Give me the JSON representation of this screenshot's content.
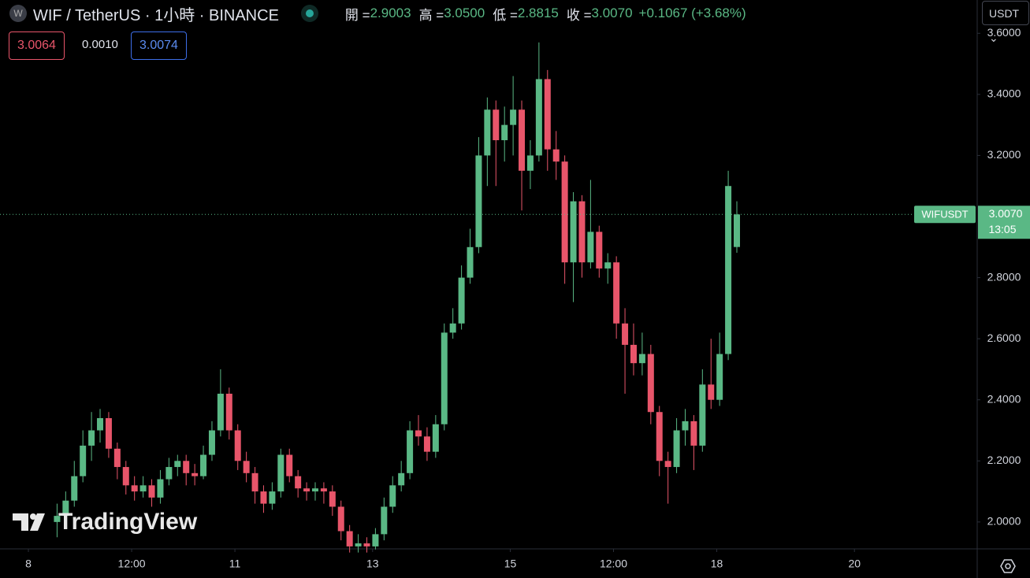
{
  "header": {
    "symbol": "WIF / TetherUS · 1小時 · BINANCE",
    "open_label": "開 =",
    "open": "2.9003",
    "high_label": "高 =",
    "high": "3.0500",
    "low_label": "低 =",
    "low": "2.8815",
    "close_label": "收 =",
    "close": "3.0070",
    "change": "+0.1067 (+3.68%)",
    "sell": "3.0064",
    "spread": "0.0010",
    "buy": "3.0074",
    "currency": "USDT"
  },
  "watermark": "TradingView",
  "chart_data": {
    "type": "candlestick",
    "up_color": "#5ab885",
    "down_color": "#e8556a",
    "grid": false,
    "x": [
      10,
      13,
      16,
      19,
      22,
      25,
      28,
      31,
      34,
      37,
      40,
      43,
      46,
      49,
      52,
      55,
      58,
      61,
      64,
      67,
      70,
      73,
      76,
      79,
      82,
      85,
      88,
      91,
      94,
      97,
      100,
      103,
      106,
      109,
      112,
      115,
      118,
      121,
      124,
      127,
      130,
      133,
      136,
      139,
      142,
      145,
      148,
      151,
      154,
      157,
      160,
      163,
      166,
      169,
      172,
      175,
      178,
      181,
      184,
      187,
      190,
      193,
      196,
      199,
      202,
      205,
      208,
      211,
      214,
      217,
      220,
      223,
      226,
      229,
      232,
      235,
      238,
      241,
      244,
      247
    ],
    "open": [
      2.0,
      2.02,
      2.07,
      2.15,
      2.25,
      2.3,
      2.34,
      2.24,
      2.18,
      2.12,
      2.1,
      2.12,
      2.08,
      2.14,
      2.18,
      2.2,
      2.16,
      2.15,
      2.22,
      2.3,
      2.42,
      2.3,
      2.2,
      2.16,
      2.1,
      2.06,
      2.1,
      2.22,
      2.15,
      2.11,
      2.1,
      2.11,
      2.1,
      2.05,
      1.97,
      1.92,
      1.93,
      1.92,
      1.96,
      2.05,
      2.12,
      2.16,
      2.3,
      2.28,
      2.23,
      2.32,
      2.62,
      2.65,
      2.8,
      2.9,
      3.2,
      3.35,
      3.25,
      3.3,
      3.35,
      3.15,
      3.2,
      3.45,
      3.22,
      3.18,
      2.85,
      3.05,
      2.85,
      2.95,
      2.83,
      2.85,
      2.65,
      2.58,
      2.52,
      2.55,
      2.36,
      2.2,
      2.18,
      2.3,
      2.33,
      2.25,
      2.45,
      2.4,
      2.55,
      2.9003
    ],
    "high": [
      2.06,
      2.1,
      2.2,
      2.3,
      2.36,
      2.37,
      2.36,
      2.26,
      2.2,
      2.15,
      2.15,
      2.14,
      2.17,
      2.21,
      2.22,
      2.22,
      2.19,
      2.25,
      2.33,
      2.5,
      2.44,
      2.32,
      2.23,
      2.18,
      2.12,
      2.13,
      2.24,
      2.24,
      2.17,
      2.13,
      2.13,
      2.13,
      2.12,
      2.07,
      1.99,
      1.96,
      1.95,
      1.98,
      2.08,
      2.15,
      2.2,
      2.33,
      2.35,
      2.31,
      2.35,
      2.65,
      2.7,
      2.84,
      2.96,
      3.26,
      3.39,
      3.38,
      3.36,
      3.46,
      3.38,
      3.25,
      3.57,
      3.48,
      3.28,
      3.2,
      3.08,
      3.07,
      3.12,
      2.97,
      2.88,
      2.87,
      2.7,
      2.65,
      2.62,
      2.58,
      2.38,
      2.23,
      2.34,
      2.37,
      2.35,
      2.5,
      2.6,
      2.62,
      3.15,
      3.05
    ],
    "low": [
      1.95,
      2.0,
      2.05,
      2.13,
      2.2,
      2.26,
      2.21,
      2.14,
      2.09,
      2.07,
      2.08,
      2.05,
      2.06,
      2.12,
      2.15,
      2.12,
      2.12,
      2.14,
      2.2,
      2.28,
      2.27,
      2.17,
      2.13,
      2.06,
      2.03,
      2.04,
      2.08,
      2.13,
      2.08,
      2.07,
      2.07,
      2.06,
      2.02,
      1.94,
      1.9,
      1.9,
      1.9,
      1.91,
      1.94,
      2.03,
      2.1,
      2.14,
      2.25,
      2.2,
      2.21,
      2.3,
      2.6,
      2.63,
      2.78,
      2.88,
      3.1,
      3.1,
      3.18,
      3.2,
      3.02,
      3.09,
      3.18,
      3.15,
      3.12,
      2.78,
      2.72,
      2.8,
      2.83,
      2.8,
      2.78,
      2.6,
      2.42,
      2.48,
      2.48,
      2.32,
      2.15,
      2.06,
      2.16,
      2.25,
      2.17,
      2.23,
      2.37,
      2.38,
      2.53,
      2.8815
    ],
    "close": [
      2.02,
      2.07,
      2.15,
      2.25,
      2.3,
      2.34,
      2.24,
      2.18,
      2.12,
      2.1,
      2.12,
      2.08,
      2.14,
      2.18,
      2.2,
      2.16,
      2.15,
      2.22,
      2.3,
      2.42,
      2.3,
      2.2,
      2.16,
      2.1,
      2.06,
      2.1,
      2.22,
      2.15,
      2.11,
      2.1,
      2.11,
      2.1,
      2.05,
      1.97,
      1.92,
      1.93,
      1.92,
      1.96,
      2.05,
      2.12,
      2.16,
      2.3,
      2.28,
      2.23,
      2.32,
      2.62,
      2.65,
      2.8,
      2.9,
      3.2,
      3.35,
      3.25,
      3.3,
      3.35,
      3.15,
      3.2,
      3.45,
      3.22,
      3.18,
      2.85,
      3.05,
      2.85,
      2.95,
      2.83,
      2.85,
      2.65,
      2.58,
      2.52,
      2.55,
      2.36,
      2.2,
      2.18,
      2.3,
      2.33,
      2.25,
      2.45,
      2.4,
      2.55,
      3.1,
      3.007
    ],
    "xlim": [
      -9.9,
      330.8
    ],
    "xticks": [
      {
        "value": 0,
        "label": "8"
      },
      {
        "value": 36,
        "label": "12:00"
      },
      {
        "value": 72,
        "label": "11"
      },
      {
        "value": 120,
        "label": "13"
      },
      {
        "value": 168,
        "label": "15"
      },
      {
        "value": 204,
        "label": "12:00"
      },
      {
        "value": 240,
        "label": "18"
      },
      {
        "value": 288,
        "label": "20"
      }
    ],
    "ylim": [
      1.912,
      3.709
    ],
    "yticks": [
      {
        "value": 2,
        "label": "2.0000"
      },
      {
        "value": 2.2,
        "label": "2.2000"
      },
      {
        "value": 2.4,
        "label": "2.4000"
      },
      {
        "value": 2.6,
        "label": "2.6000"
      },
      {
        "value": 2.8,
        "label": "2.8000"
      },
      {
        "value": 3.2,
        "label": "3.2000"
      },
      {
        "value": 3.4,
        "label": "3.4000"
      },
      {
        "value": 3.6,
        "label": "3.6000"
      }
    ],
    "price_line": {
      "name": "WIFUSDT",
      "value": 3.007,
      "label": "3.0070",
      "countdown": "13:05",
      "color": "#5ab885"
    }
  }
}
